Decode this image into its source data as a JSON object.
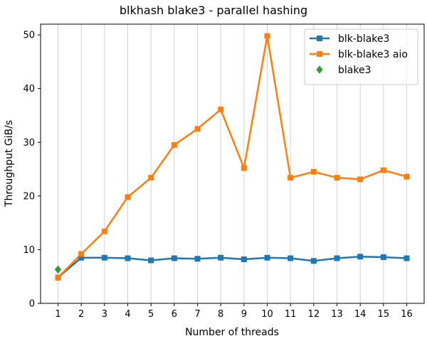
{
  "chart_data": {
    "type": "line",
    "title": "blkhash blake3 - parallel hashing",
    "xlabel": "Number of threads",
    "ylabel": "Throughput GiB/s",
    "xlim": [
      0.25,
      16.75
    ],
    "ylim": [
      0,
      52
    ],
    "x_ticks": [
      1,
      2,
      3,
      4,
      5,
      6,
      7,
      8,
      9,
      10,
      11,
      12,
      13,
      14,
      15,
      16
    ],
    "y_ticks": [
      0,
      10,
      20,
      30,
      40,
      50
    ],
    "grid": "vertical",
    "legend_position": "top-right",
    "series": [
      {
        "name": "blk-blake3",
        "color": "#1f77b4",
        "marker": "square",
        "line": true,
        "x": [
          1,
          2,
          3,
          4,
          5,
          6,
          7,
          8,
          9,
          10,
          11,
          12,
          13,
          14,
          15,
          16
        ],
        "values": [
          4.8,
          8.5,
          8.5,
          8.4,
          8.0,
          8.4,
          8.3,
          8.5,
          8.2,
          8.5,
          8.4,
          7.9,
          8.4,
          8.7,
          8.6,
          8.4
        ]
      },
      {
        "name": "blk-blake3 aio",
        "color": "#ff7f0e",
        "marker": "square",
        "line": true,
        "x": [
          1,
          2,
          3,
          4,
          5,
          6,
          7,
          8,
          9,
          10,
          11,
          12,
          13,
          14,
          15,
          16
        ],
        "values": [
          4.8,
          9.2,
          13.4,
          19.8,
          23.4,
          29.5,
          32.5,
          36.1,
          25.2,
          49.8,
          23.4,
          24.5,
          23.4,
          23.1,
          24.8,
          23.6
        ]
      },
      {
        "name": "blake3",
        "color": "#2ca02c",
        "marker": "diamond",
        "line": false,
        "x": [
          1
        ],
        "values": [
          6.3
        ]
      }
    ]
  }
}
